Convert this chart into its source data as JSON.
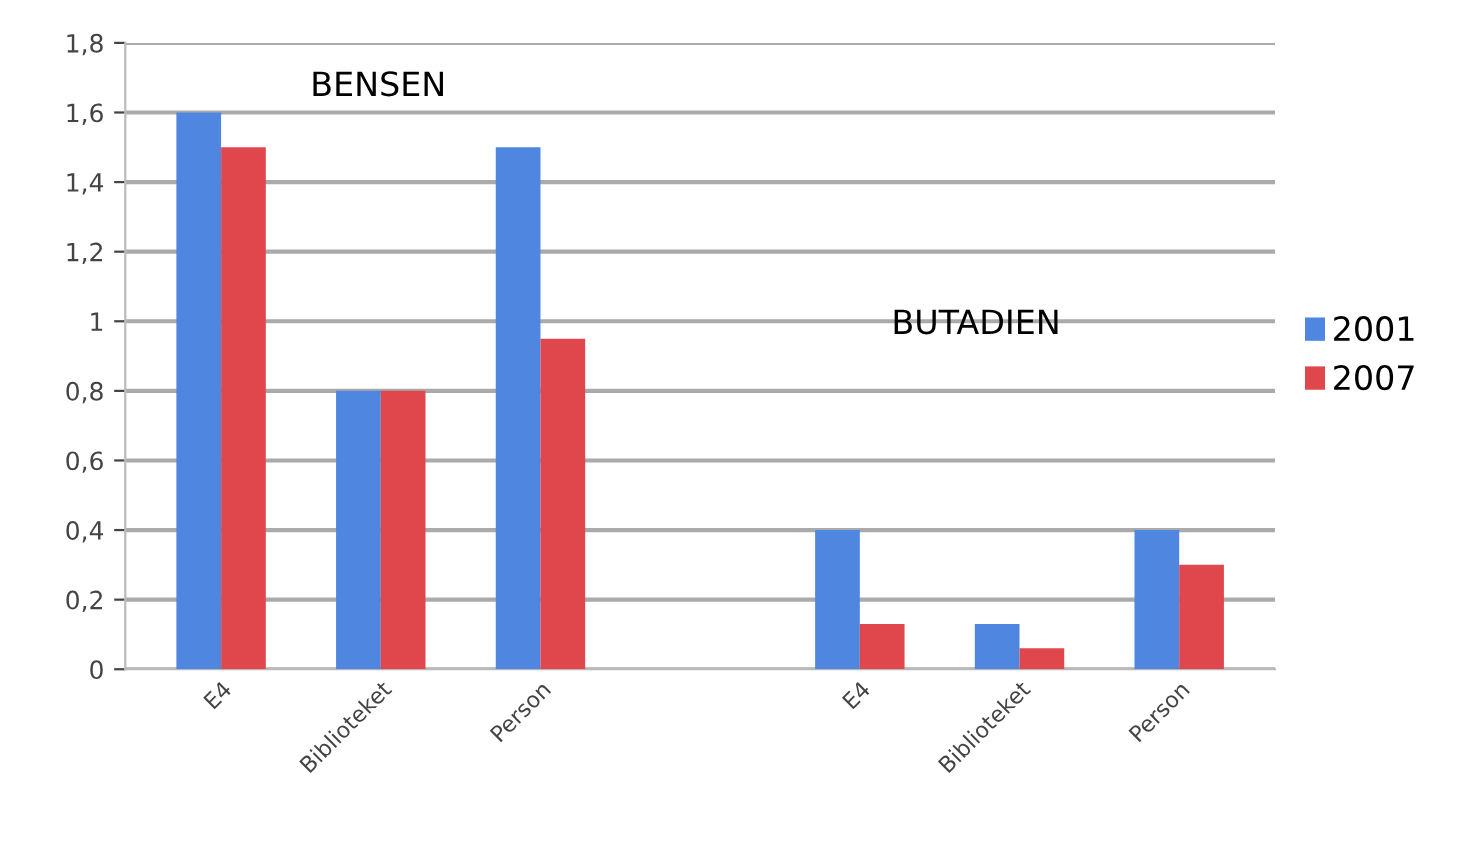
{
  "chart_data": {
    "type": "bar",
    "categories": [
      "E4",
      "Biblioteket",
      "Person",
      null,
      "E4",
      "Biblioteket",
      "Person"
    ],
    "series": [
      {
        "name": "2001",
        "color": "#4f86e0",
        "values": [
          1.6,
          0.8,
          1.5,
          null,
          0.4,
          0.13,
          0.4
        ]
      },
      {
        "name": "2007",
        "color": "#e0474c",
        "values": [
          1.5,
          0.8,
          0.95,
          null,
          0.13,
          0.06,
          0.3
        ]
      }
    ],
    "ylim": [
      0,
      1.8
    ],
    "yticks": [
      0,
      {
        "value": 0.2,
        "label": "0,2"
      },
      {
        "value": 0.4,
        "label": "0,4"
      },
      {
        "value": 0.6,
        "label": "0,6"
      },
      {
        "value": 0.8,
        "label": "0,8"
      },
      1,
      {
        "value": 1.2,
        "label": "1,2"
      },
      {
        "value": 1.4,
        "label": "1,4"
      },
      {
        "value": 1.6,
        "label": "1,6"
      },
      {
        "value": 1.8,
        "label": "1,8"
      }
    ],
    "annotations": [
      "BENSEN",
      "BUTADIEN"
    ],
    "grid": "y",
    "legend": "right"
  }
}
